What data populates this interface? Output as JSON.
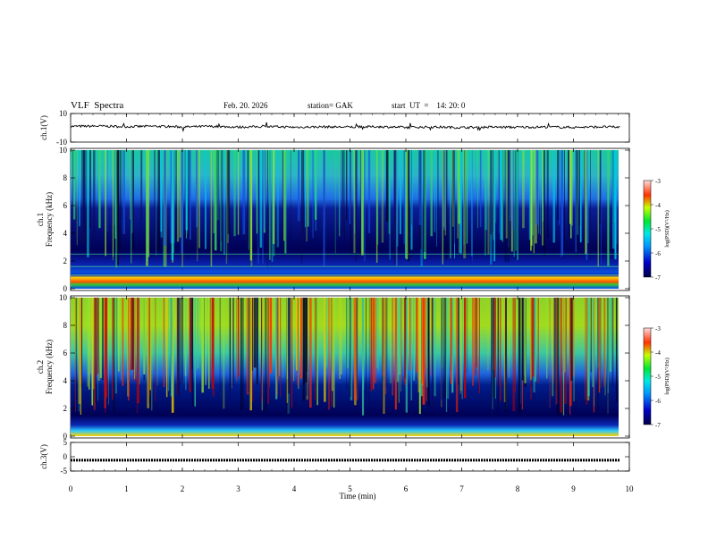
{
  "header": {
    "title": "VLF  Spectra",
    "date": "Feb. 20. 2026",
    "station": "station= GAK",
    "start": "start  UT  =    14: 20: 0"
  },
  "chart_data": [
    {
      "type": "line",
      "panel": "ch1-waveform",
      "ylabel": "ch.1(V)",
      "ylim": [
        -10,
        10
      ],
      "yticks": [
        "10",
        "-10"
      ],
      "x": [
        0,
        0.5,
        1,
        1.5,
        2,
        2.5,
        3,
        3.5,
        4,
        4.5,
        5,
        5.5,
        6,
        6.5,
        7,
        7.5,
        8,
        8.5,
        9,
        9.5,
        9.83
      ],
      "values": [
        1.0,
        1.2,
        0.8,
        1.1,
        0.6,
        1.0,
        0.5,
        0.9,
        0.4,
        0.7,
        0.5,
        0.8,
        0.3,
        0.6,
        0.2,
        0.5,
        0.4,
        0.6,
        0.3,
        0.7,
        0.4
      ],
      "grid": false
    },
    {
      "type": "heatmap",
      "panel": "ch1-spectrogram",
      "ylabel": "ch.1\nFrequency  (kHz)",
      "ylim": [
        0,
        10
      ],
      "yticks": [
        "0",
        "2",
        "4",
        "6",
        "8",
        "10"
      ],
      "colorbar": {
        "label": "log(PSD)(V²/Hz)",
        "range": [
          -7,
          -3
        ],
        "ticks": [
          "-3",
          "-4",
          "-5",
          "-6",
          "-7"
        ]
      },
      "note_bands_khz": [
        0.5,
        2.5,
        6.5
      ],
      "grid": false
    },
    {
      "type": "heatmap",
      "panel": "ch2-spectrogram",
      "ylabel": "ch.2\nFrequency  (kHz)",
      "ylim": [
        0,
        10
      ],
      "yticks": [
        "0",
        "2",
        "4",
        "6",
        "8",
        "10"
      ],
      "colorbar": {
        "label": "log(PSD)(V²/Hz)",
        "range": [
          -7,
          -3
        ],
        "ticks": [
          "-3",
          "-4",
          "-5",
          "-6",
          "-7"
        ]
      },
      "grid": false
    },
    {
      "type": "line",
      "panel": "ch3-waveform",
      "ylabel": "ch.3(V)",
      "ylim": [
        -5,
        5
      ],
      "yticks": [
        "5",
        "0",
        "-5"
      ],
      "x": [
        0,
        9.83
      ],
      "values": [
        -1.2,
        -1.2
      ],
      "grid": false
    }
  ],
  "xaxis": {
    "label": "Time  (min)",
    "xlim": [
      0,
      10
    ],
    "ticks": [
      "0",
      "1",
      "2",
      "3",
      "4",
      "5",
      "6",
      "7",
      "8",
      "9",
      "10"
    ]
  },
  "colors": {
    "low": "#000046",
    "mid": "#00c8ff",
    "high": "#ff0000"
  }
}
